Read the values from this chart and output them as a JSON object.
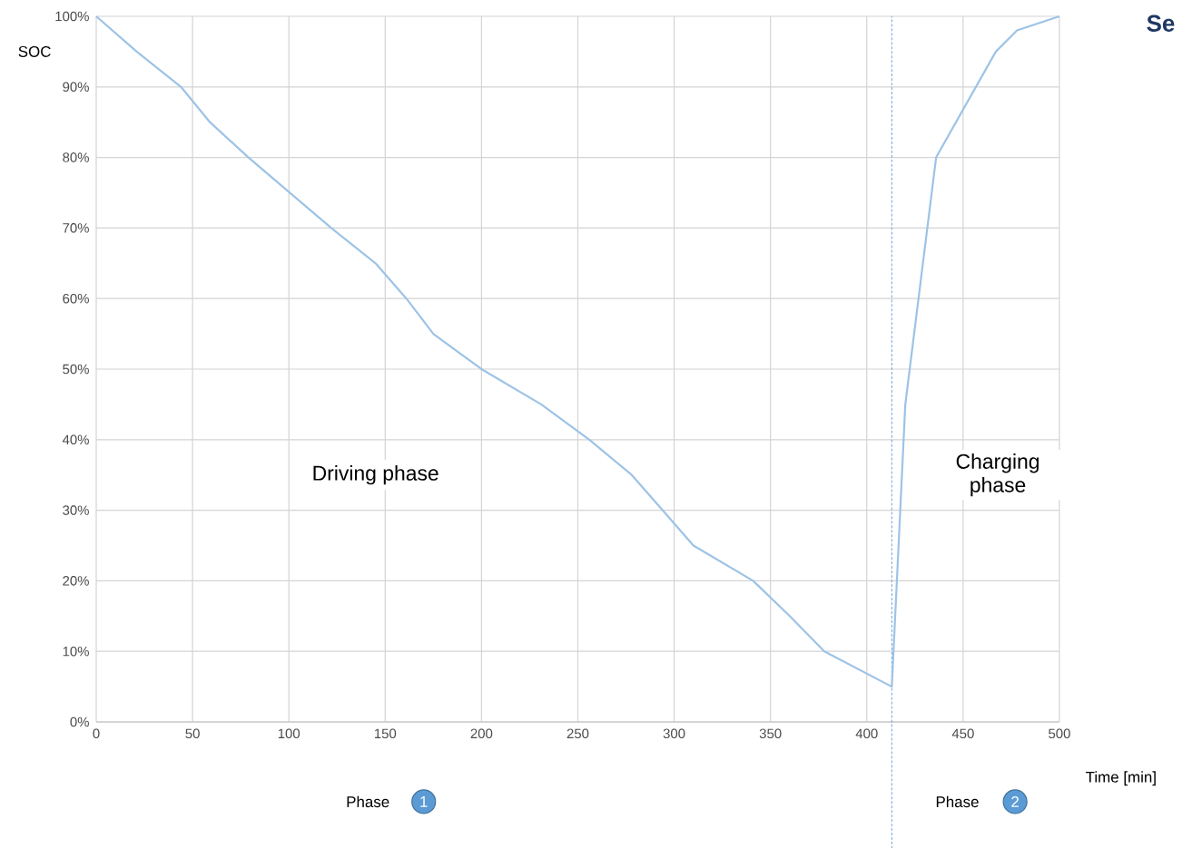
{
  "chart_data": {
    "type": "line",
    "xlabel": "Time [min]",
    "ylabel": "SOC",
    "x": [
      0,
      21,
      44,
      59,
      79,
      122,
      145,
      161,
      175,
      200,
      231,
      256,
      278,
      294,
      310,
      341,
      360,
      378,
      413,
      420,
      436,
      467,
      478,
      500
    ],
    "series": [
      {
        "color": "#9dc3e6",
        "values": [
          100,
          95,
          90,
          85,
          80,
          70,
          65,
          60,
          55,
          50,
          45,
          40,
          35,
          30,
          25,
          20,
          15,
          10,
          5,
          45,
          80,
          95,
          98,
          100
        ]
      }
    ],
    "xlim": [
      0,
      500
    ],
    "ylim": [
      0,
      100
    ],
    "xticks": [
      0,
      50,
      100,
      150,
      200,
      250,
      300,
      350,
      400,
      450,
      500
    ],
    "yticks": [
      {
        "value": 0,
        "label": "0%"
      },
      {
        "value": 10,
        "label": "10%"
      },
      {
        "value": 20,
        "label": "20%"
      },
      {
        "value": 30,
        "label": "30%"
      },
      {
        "value": 40,
        "label": "40%"
      },
      {
        "value": 50,
        "label": "50%"
      },
      {
        "value": 60,
        "label": "60%"
      },
      {
        "value": 70,
        "label": "70%"
      },
      {
        "value": 80,
        "label": "80%"
      },
      {
        "value": 90,
        "label": "90%"
      },
      {
        "value": 100,
        "label": "100%"
      }
    ],
    "grid": true,
    "ref_lines": [
      {
        "axis": "x",
        "value": 413,
        "color": "#5b9bd5",
        "line_style": "dashed"
      }
    ],
    "annotations": [
      "Driving phase",
      "Charging phase",
      "Phase",
      "1",
      "Phase",
      "2",
      "Se"
    ]
  }
}
